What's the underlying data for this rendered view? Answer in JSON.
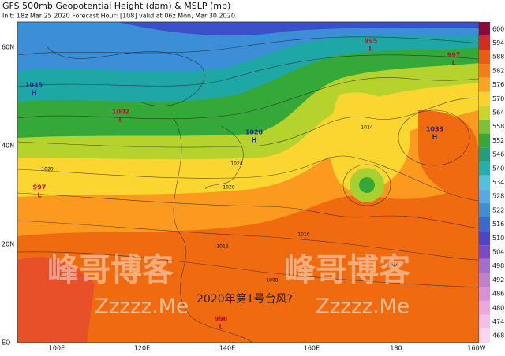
{
  "header": {
    "title": "GFS 500mb Geopotential Height (dam) & MSLP (mb)",
    "subtitle": "Init: 18z Mar 25 2020   Forecast Hour: [108]   valid at 06z Mon, Mar 30 2020"
  },
  "latitude_labels": [
    "60N",
    "40N",
    "20N",
    "EQ"
  ],
  "longitude_labels": [
    "100E",
    "120E",
    "140E",
    "160E",
    "180",
    "160W"
  ],
  "colorbar": {
    "labels": [
      600,
      594,
      588,
      582,
      576,
      570,
      564,
      558,
      552,
      546,
      540,
      534,
      528,
      522,
      516,
      510,
      504,
      498,
      492,
      486,
      480,
      474,
      468
    ],
    "colors": [
      "#8a0b3a",
      "#d82a22",
      "#ee5a14",
      "#f47d18",
      "#fba424",
      "#fcd32e",
      "#c8d62c",
      "#7cc13a",
      "#35a83a",
      "#1fa07a",
      "#1fb0b0",
      "#4ac4e0",
      "#58a8e8",
      "#3c8fd6",
      "#3a6ad0",
      "#4a48c8",
      "#7a4ac8",
      "#a070d0",
      "#c080d0",
      "#d890d8",
      "#e8a8e0",
      "#f0c0e8",
      "#f8d8f0"
    ]
  },
  "pressure_centers": [
    {
      "symbol": "L",
      "value": "995"
    },
    {
      "symbol": "L",
      "value": "997"
    },
    {
      "symbol": "H",
      "value": "1035"
    },
    {
      "symbol": "L",
      "value": "1002"
    },
    {
      "symbol": "H",
      "value": "1020"
    },
    {
      "symbol": "H",
      "value": "1033"
    },
    {
      "symbol": "L",
      "value": "997"
    },
    {
      "symbol": "L",
      "value": "996"
    }
  ],
  "isobar_labels": [
    "1024",
    "1020",
    "1016",
    "1012",
    "1008",
    "1016",
    "1020",
    "1024"
  ],
  "annotation": "2020年第1号台风?",
  "watermarks": [
    "峰哥博客",
    "峰哥博客",
    "Zzzzz.Me",
    "Zzzzz.Me"
  ]
}
